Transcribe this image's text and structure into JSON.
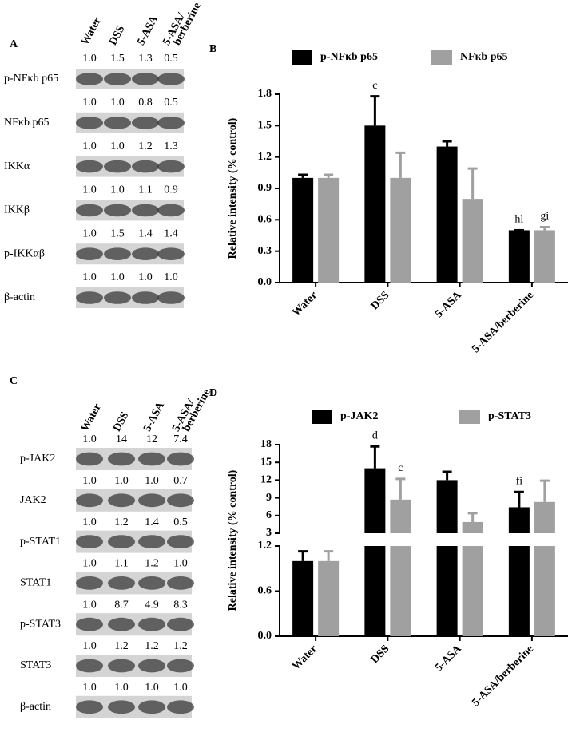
{
  "blots": [
    {
      "label": "A",
      "lanes": [
        [
          "Water"
        ],
        [
          "DSS"
        ],
        [
          "5-ASA"
        ],
        [
          "5-ASA/",
          "berberine"
        ]
      ],
      "rows": [
        {
          "name": "p-NFκb  p65",
          "values": [
            "1.0",
            "1.5",
            "1.3",
            "0.5"
          ]
        },
        {
          "name": "NFκb p65",
          "values": [
            "1.0",
            "1.0",
            "0.8",
            "0.5"
          ]
        },
        {
          "name": "IKKα",
          "values": [
            "1.0",
            "1.0",
            "1.2",
            "1.3"
          ]
        },
        {
          "name": "IKKβ",
          "values": [
            "1.0",
            "1.0",
            "1.1",
            "0.9"
          ]
        },
        {
          "name": "p-IKKαβ",
          "values": [
            "1.0",
            "1.5",
            "1.4",
            "1.4"
          ]
        },
        {
          "name": "β-actin",
          "values": [
            "1.0",
            "1.0",
            "1.0",
            "1.0"
          ]
        }
      ]
    },
    {
      "label": "C",
      "lanes": [
        [
          "Water"
        ],
        [
          "DSS"
        ],
        [
          "5-ASA"
        ],
        [
          "5-ASA/",
          "berberine"
        ]
      ],
      "rows": [
        {
          "name": "p-JAK2",
          "values": [
            "1.0",
            "14",
            "12",
            "7.4"
          ]
        },
        {
          "name": "JAK2",
          "values": [
            "1.0",
            "1.0",
            "1.0",
            "0.7"
          ]
        },
        {
          "name": "p-STAT1",
          "values": [
            "1.0",
            "1.2",
            "1.4",
            "0.5"
          ]
        },
        {
          "name": "STAT1",
          "values": [
            "1.0",
            "1.1",
            "1.2",
            "1.0"
          ]
        },
        {
          "name": "p-STAT3",
          "values": [
            "1.0",
            "8.7",
            "4.9",
            "8.3"
          ]
        },
        {
          "name": "STAT3",
          "values": [
            "1.0",
            "1.2",
            "1.2",
            "1.2"
          ]
        },
        {
          "name": "β-actin",
          "values": [
            "1.0",
            "1.0",
            "1.0",
            "1.0"
          ]
        }
      ]
    }
  ],
  "chart_data": [
    {
      "type": "bar",
      "label": "B",
      "y_label": "Relative intensity (% control)",
      "categories": [
        "Water",
        "DSS",
        "5-ASA",
        "5-ASA/berberine"
      ],
      "series": [
        {
          "name": "p-NFκb p65",
          "color": "#000000",
          "values": [
            1.0,
            1.5,
            1.3,
            0.5
          ],
          "errors": [
            0.03,
            0.28,
            0.05,
            0
          ],
          "value_annotations": [
            null,
            "c",
            null,
            "hl"
          ]
        },
        {
          "name": "NFκb p65",
          "color": "#a0a0a0",
          "values": [
            1.0,
            1.0,
            0.8,
            0.5
          ],
          "errors": [
            0.03,
            0.24,
            0.29,
            0.03
          ],
          "value_annotations": [
            null,
            null,
            null,
            "gi"
          ]
        }
      ],
      "ylim": [
        0,
        1.8
      ],
      "yticks": [
        {
          "value": 0,
          "label": "0.0"
        },
        0.3,
        0.6,
        0.9,
        1.2,
        1.5,
        1.8
      ]
    },
    {
      "type": "bar",
      "label": "D",
      "y_label": "Relative intensity (% control)",
      "categories": [
        "Water",
        "DSS",
        "5-ASA",
        "5-ASA/berberine"
      ],
      "series": [
        {
          "name": "p-JAK2",
          "color": "#000000",
          "values": [
            1.0,
            14,
            12,
            7.4
          ],
          "errors": [
            0.13,
            3.7,
            1.4,
            2.6
          ],
          "value_annotations": [
            null,
            "d",
            null,
            "fi"
          ]
        },
        {
          "name": "p-STAT3",
          "color": "#a0a0a0",
          "values": [
            1.0,
            8.7,
            4.9,
            8.3
          ],
          "errors": [
            0.13,
            3.5,
            1.5,
            3.6
          ],
          "value_annotations": [
            null,
            "c",
            null,
            null
          ]
        }
      ],
      "ylim": [
        0,
        18
      ],
      "ybreak": [
        1.2,
        3
      ],
      "yticks": [
        {
          "value": 0,
          "label": "0.0"
        },
        0.6,
        1.2,
        3,
        6,
        9,
        12,
        15,
        18
      ]
    }
  ]
}
